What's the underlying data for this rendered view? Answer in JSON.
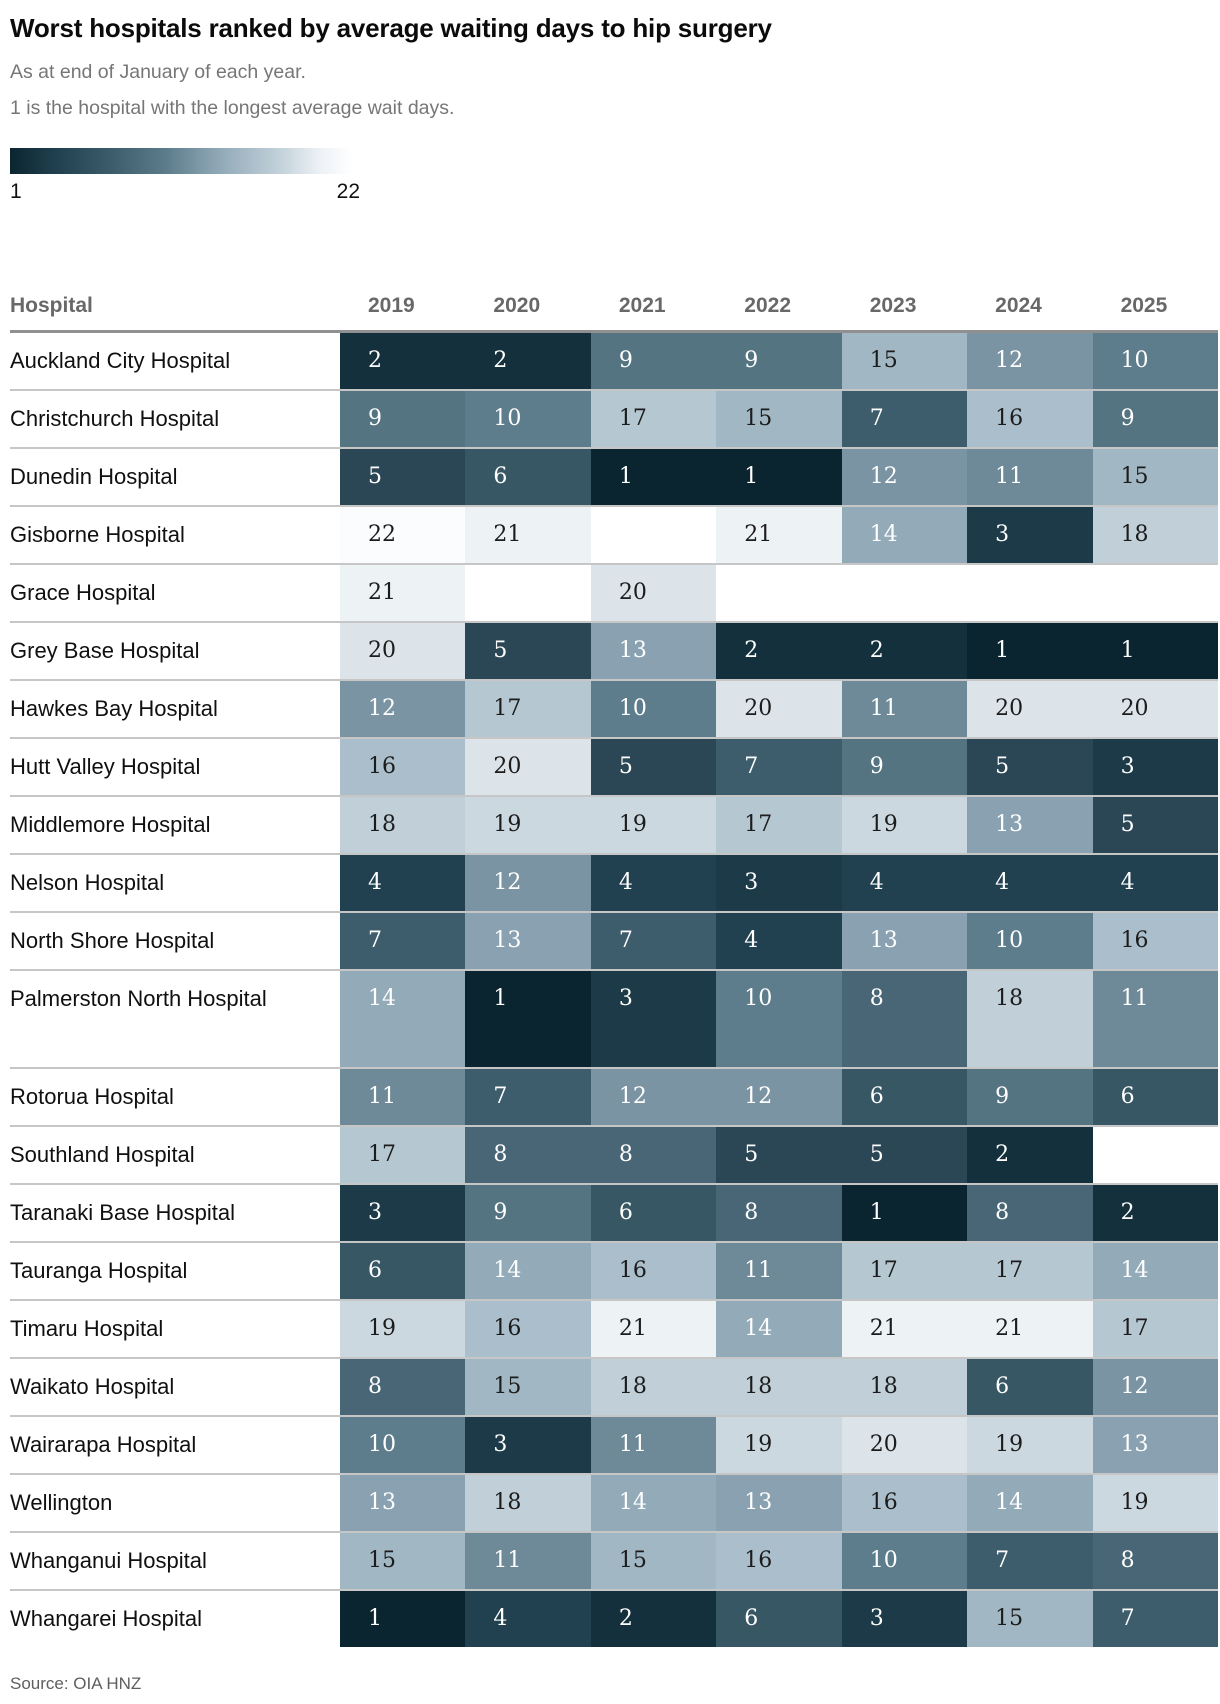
{
  "chart_data": {
    "type": "heatmap",
    "title": "Worst hospitals ranked by average waiting days to hip surgery",
    "subtitle": "As at end of January of each year.",
    "note": "1 is the hospital with the longest average wait days.",
    "source": "Source: OIA HNZ",
    "legend": {
      "min": 1,
      "max": 22,
      "min_label": "1",
      "max_label": "22",
      "dark_color": "#0b2530",
      "light_color": "#ffffff"
    },
    "row_header": "Hospital",
    "columns": [
      "2019",
      "2020",
      "2021",
      "2022",
      "2023",
      "2024",
      "2025"
    ],
    "rows": [
      {
        "hospital": "Auckland City Hospital",
        "ranks": [
          2,
          2,
          9,
          9,
          15,
          12,
          10
        ]
      },
      {
        "hospital": "Christchurch Hospital",
        "ranks": [
          9,
          10,
          17,
          15,
          7,
          16,
          9
        ]
      },
      {
        "hospital": "Dunedin Hospital",
        "ranks": [
          5,
          6,
          1,
          1,
          12,
          11,
          15
        ]
      },
      {
        "hospital": "Gisborne Hospital",
        "ranks": [
          22,
          21,
          null,
          21,
          14,
          3,
          18
        ]
      },
      {
        "hospital": "Grace Hospital",
        "ranks": [
          21,
          null,
          20,
          null,
          null,
          null,
          null
        ]
      },
      {
        "hospital": "Grey Base Hospital",
        "ranks": [
          20,
          5,
          13,
          2,
          2,
          1,
          1
        ]
      },
      {
        "hospital": "Hawkes Bay Hospital",
        "ranks": [
          12,
          17,
          10,
          20,
          11,
          20,
          20
        ]
      },
      {
        "hospital": "Hutt Valley Hospital",
        "ranks": [
          16,
          20,
          5,
          7,
          9,
          5,
          3
        ]
      },
      {
        "hospital": "Middlemore Hospital",
        "ranks": [
          18,
          19,
          19,
          17,
          19,
          13,
          5
        ]
      },
      {
        "hospital": "Nelson Hospital",
        "ranks": [
          4,
          12,
          4,
          3,
          4,
          4,
          4
        ]
      },
      {
        "hospital": "North Shore Hospital",
        "ranks": [
          7,
          13,
          7,
          4,
          13,
          10,
          16
        ]
      },
      {
        "hospital": "Palmerston North Hospital",
        "ranks": [
          14,
          1,
          3,
          10,
          8,
          18,
          11
        ]
      },
      {
        "hospital": "Rotorua Hospital",
        "ranks": [
          11,
          7,
          12,
          12,
          6,
          9,
          6
        ]
      },
      {
        "hospital": "Southland Hospital",
        "ranks": [
          17,
          8,
          8,
          5,
          5,
          2,
          null
        ]
      },
      {
        "hospital": "Taranaki Base Hospital",
        "ranks": [
          3,
          9,
          6,
          8,
          1,
          8,
          2
        ]
      },
      {
        "hospital": "Tauranga Hospital",
        "ranks": [
          6,
          14,
          16,
          11,
          17,
          17,
          14
        ]
      },
      {
        "hospital": "Timaru Hospital",
        "ranks": [
          19,
          16,
          21,
          14,
          21,
          21,
          17
        ]
      },
      {
        "hospital": "Waikato Hospital",
        "ranks": [
          8,
          15,
          18,
          18,
          18,
          6,
          12
        ]
      },
      {
        "hospital": "Wairarapa Hospital",
        "ranks": [
          10,
          3,
          11,
          19,
          20,
          19,
          13
        ]
      },
      {
        "hospital": "Wellington",
        "ranks": [
          13,
          18,
          14,
          13,
          16,
          14,
          19
        ]
      },
      {
        "hospital": "Whanganui Hospital",
        "ranks": [
          15,
          11,
          15,
          16,
          10,
          7,
          8
        ]
      },
      {
        "hospital": "Whangarei Hospital",
        "ranks": [
          1,
          4,
          2,
          6,
          3,
          15,
          7
        ]
      }
    ],
    "palette": [
      "#0b2530",
      "#13303c",
      "#1c3a47",
      "#224150",
      "#2b4755",
      "#375764",
      "#3e5d6c",
      "#486675",
      "#547482",
      "#5e7d8c",
      "#6e8a99",
      "#7b94a3",
      "#89a1b0",
      "#93abb9",
      "#a1b7c3",
      "#aabfcb",
      "#b5c7d1",
      "#c0cfd8",
      "#ccd8e0",
      "#dce4ea",
      "#edf2f5",
      "#fbfcfd"
    ],
    "dark_text_min_rank": 15,
    "empty_color": "#ffffff"
  }
}
